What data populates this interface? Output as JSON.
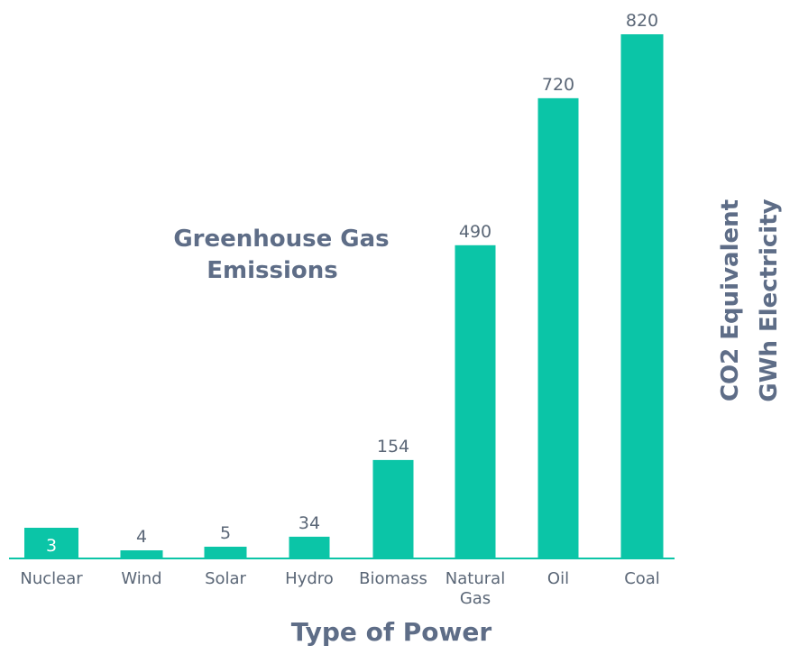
{
  "chart_data": {
    "type": "bar",
    "title": [
      "Greenhouse Gas",
      "Emissions"
    ],
    "xlabel": "Type of Power",
    "ylabel": [
      "CO2 Equivalent",
      "GWh Electricity"
    ],
    "categories": [
      [
        "Nuclear"
      ],
      [
        "Wind"
      ],
      [
        "Solar"
      ],
      [
        "Hydro"
      ],
      [
        "Biomass"
      ],
      [
        "Natural",
        "Gas"
      ],
      [
        "Oil"
      ],
      [
        "Coal"
      ]
    ],
    "values": [
      3,
      4,
      5,
      34,
      154,
      490,
      720,
      820
    ],
    "ylim": [
      0,
      820
    ],
    "grid": false,
    "legend": "none",
    "bar_color": "#0bc5a7",
    "text_color": "#5e6d87"
  }
}
